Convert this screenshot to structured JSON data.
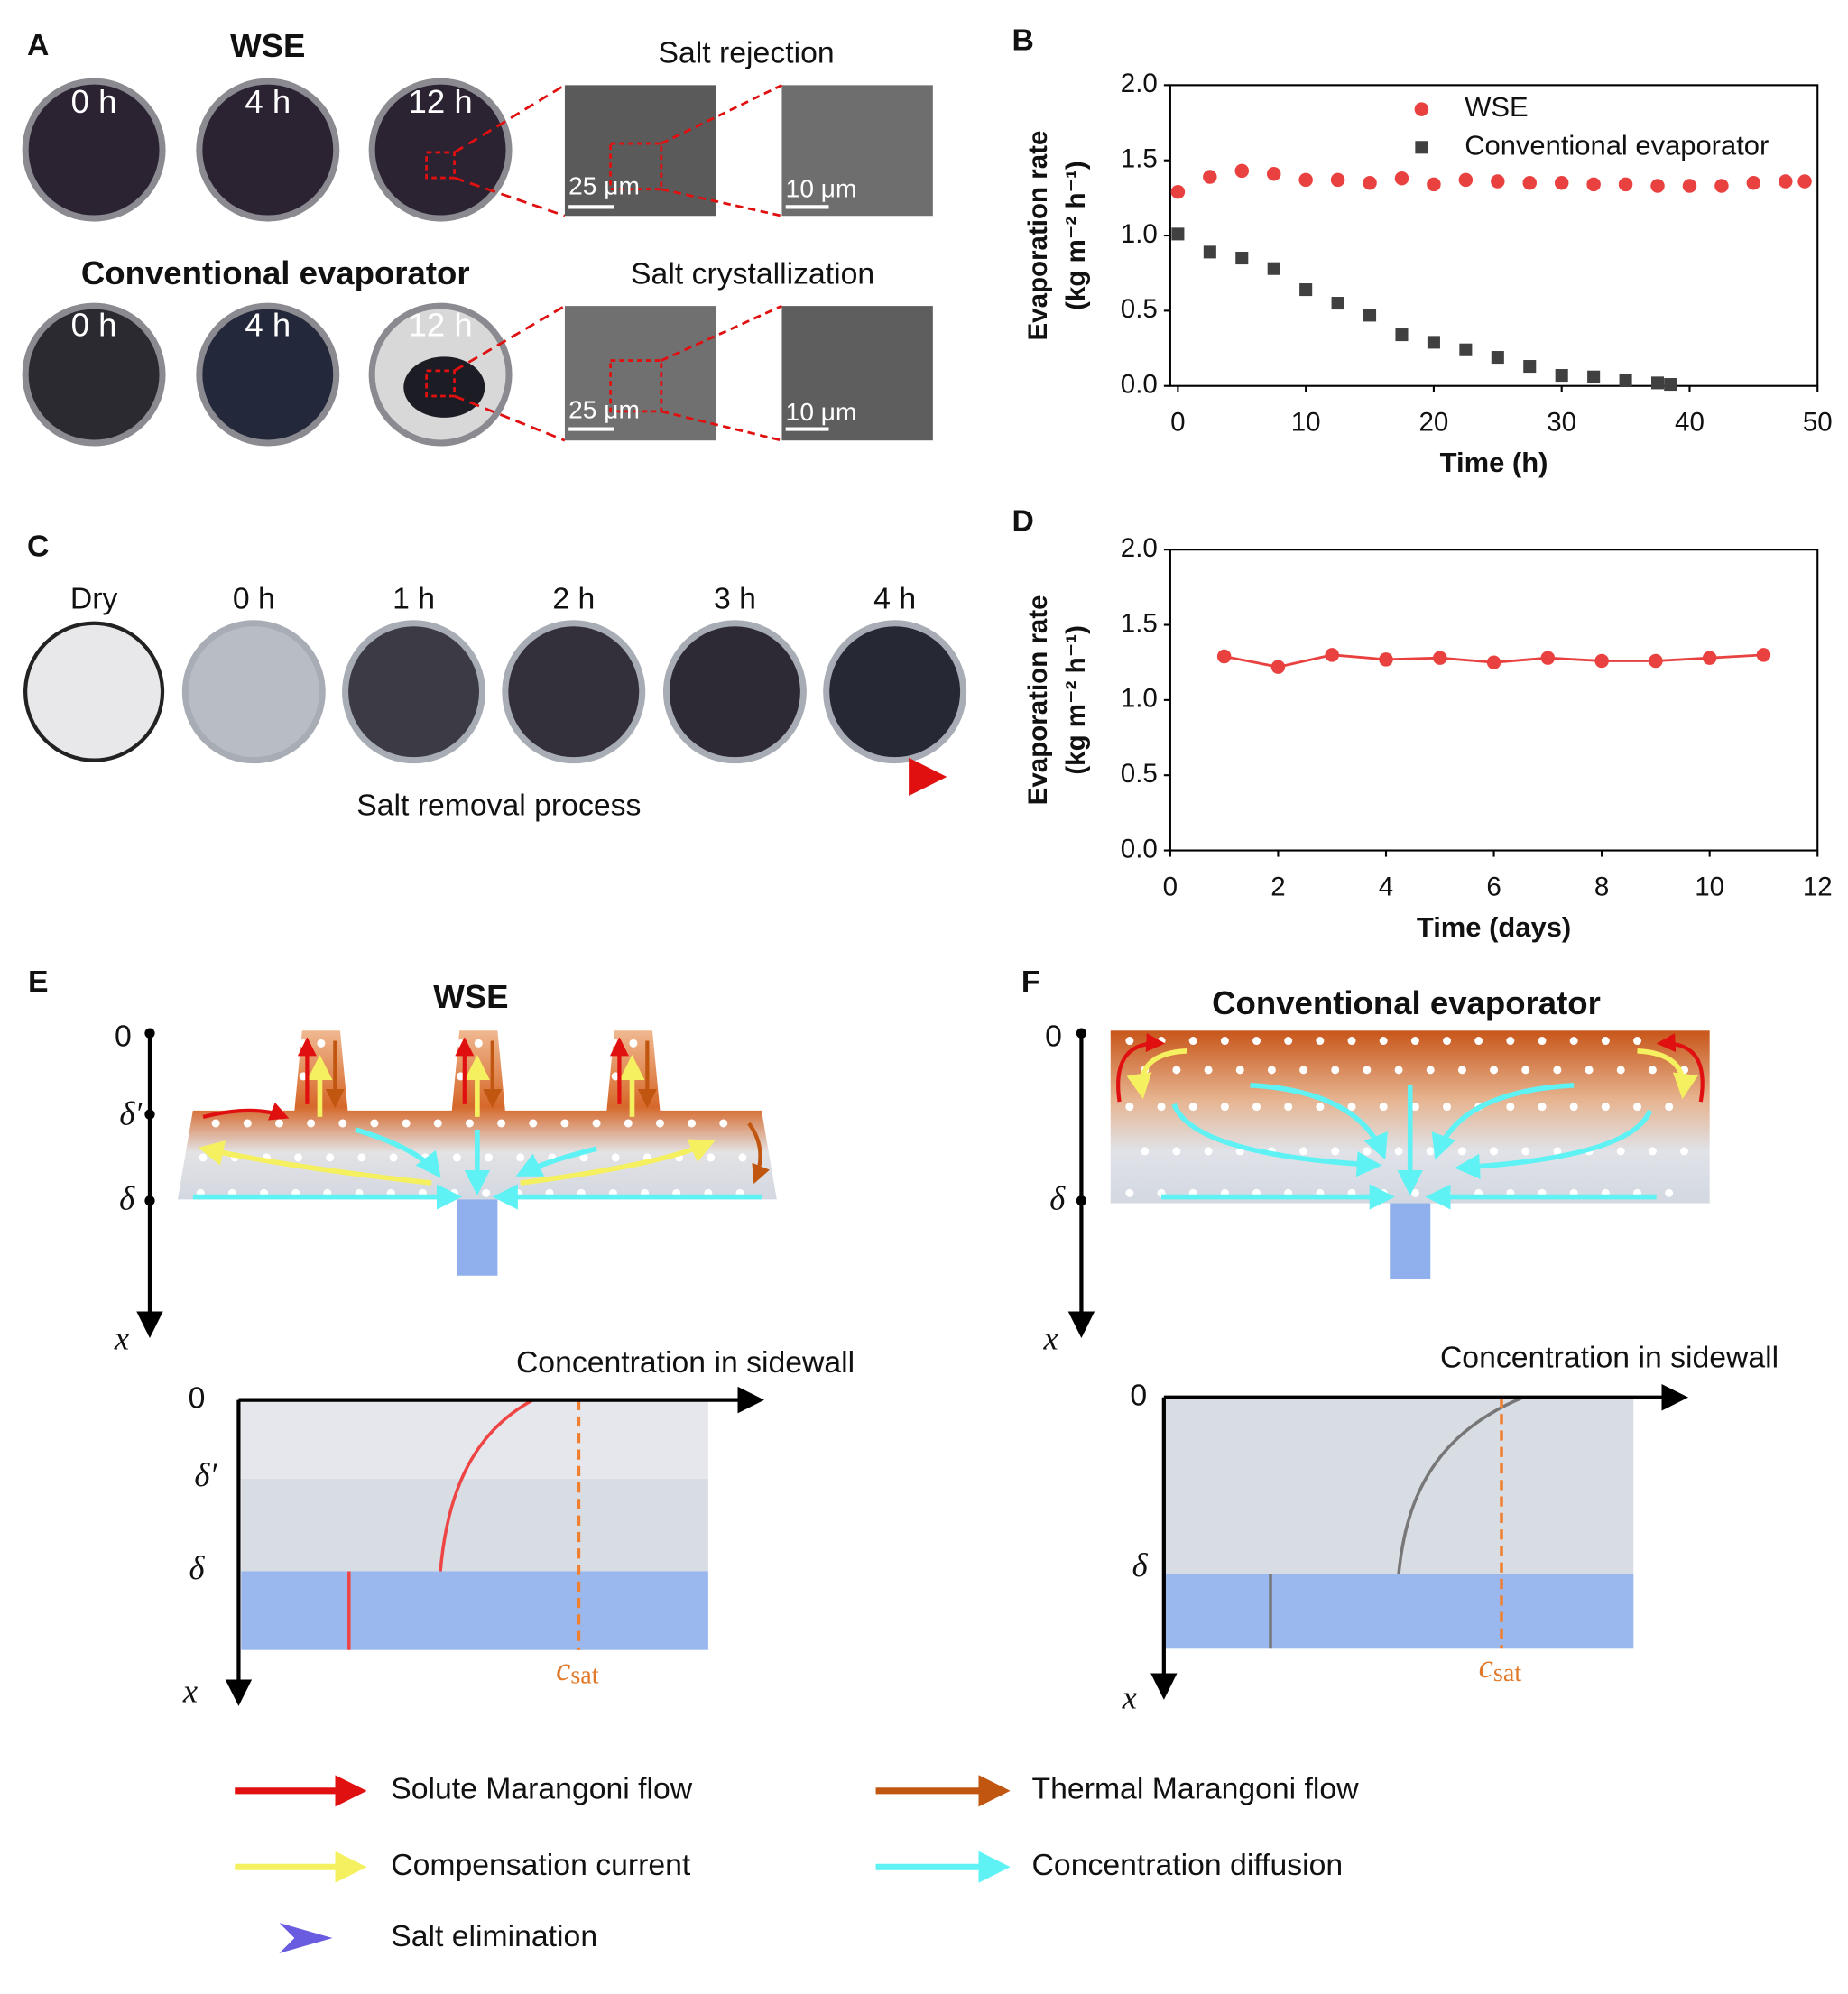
{
  "panel_labels": [
    "A",
    "B",
    "C",
    "D",
    "E",
    "F"
  ],
  "panel_a": {
    "title_top": "WSE",
    "title_bottom": "Conventional evaporator",
    "times": [
      "0 h",
      "4 h",
      "12 h"
    ],
    "sem_top": "Salt rejection",
    "sem_bottom": "Salt crystallization",
    "scale_large": "25 μm",
    "scale_small": "10 μm"
  },
  "panel_c": {
    "labels": [
      "Dry",
      "0 h",
      "1 h",
      "2 h",
      "3 h",
      "4 h"
    ],
    "arrow_label": "Salt removal process"
  },
  "panel_e": {
    "title": "WSE",
    "depth_labels": [
      "0",
      "δ′",
      "δ",
      "x"
    ],
    "plot_title": "Concentration in sidewall",
    "csat": "c",
    "csat_sub": "sat"
  },
  "panel_f": {
    "title": "Conventional evaporator",
    "depth_labels": [
      "0",
      "δ",
      "x"
    ],
    "plot_title": "Concentration in sidewall",
    "csat": "c",
    "csat_sub": "sat"
  },
  "legend": [
    "Solute Marangoni flow",
    "Thermal Marangoni flow",
    "Compensation current",
    "Concentration diffusion",
    "Salt elimination"
  ],
  "chart_data": [
    {
      "type": "scatter",
      "x_label": "Time (h)",
      "y_label": [
        "Evaporation rate",
        "(kg m⁻² h⁻¹)"
      ],
      "xlim": [
        -0.6,
        50
      ],
      "xticks": [
        0,
        10,
        20,
        30,
        40,
        50
      ],
      "ylim": [
        0,
        2
      ],
      "yticks": [
        {
          "value": 0,
          "label": "0.0"
        },
        0.5,
        {
          "value": 1,
          "label": "1.0"
        },
        1.5,
        {
          "value": 2,
          "label": "2.0"
        }
      ],
      "series": [
        {
          "name": "WSE",
          "color": "#e8413f",
          "marker": "circle",
          "x": [
            0,
            2.5,
            5,
            7.5,
            10,
            12.5,
            15,
            17.5,
            20,
            22.5,
            25,
            27.5,
            30,
            32.5,
            35,
            37.5,
            40,
            42.5,
            45,
            47.5,
            49
          ],
          "values": [
            1.29,
            1.39,
            1.43,
            1.41,
            1.37,
            1.37,
            1.35,
            1.38,
            1.34,
            1.37,
            1.36,
            1.35,
            1.35,
            1.34,
            1.34,
            1.33,
            1.33,
            1.33,
            1.35,
            1.36,
            1.36
          ]
        },
        {
          "name": "Conventional evaporator",
          "color": "#404040",
          "marker": "square",
          "x": [
            0,
            2.5,
            5,
            7.5,
            10,
            12.5,
            15,
            17.5,
            20,
            22.5,
            25,
            27.5,
            30,
            32.5,
            35,
            37.5,
            38.5
          ],
          "values": [
            1.01,
            0.89,
            0.85,
            0.78,
            0.64,
            0.55,
            0.47,
            0.34,
            0.29,
            0.24,
            0.19,
            0.13,
            0.07,
            0.06,
            0.04,
            0.02,
            0.01
          ]
        }
      ]
    },
    {
      "type": "line",
      "x_label": "Time (days)",
      "y_label": [
        "Evaporation rate",
        "(kg m⁻² h⁻¹)"
      ],
      "xlim": [
        0,
        12
      ],
      "xticks": [
        0,
        2,
        4,
        6,
        8,
        10,
        12
      ],
      "ylim": [
        0,
        2
      ],
      "yticks": [
        {
          "value": 0,
          "label": "0.0"
        },
        0.5,
        {
          "value": 1,
          "label": "1.0"
        },
        1.5,
        {
          "value": 2,
          "label": "2.0"
        }
      ],
      "x": [
        1,
        2,
        3,
        4,
        5,
        6,
        7,
        8,
        9,
        10,
        11
      ],
      "series": [
        {
          "color": "#e8413f",
          "marker": "circle",
          "values": [
            1.29,
            1.22,
            1.3,
            1.27,
            1.28,
            1.25,
            1.28,
            1.26,
            1.26,
            1.28,
            1.3
          ]
        }
      ]
    }
  ]
}
